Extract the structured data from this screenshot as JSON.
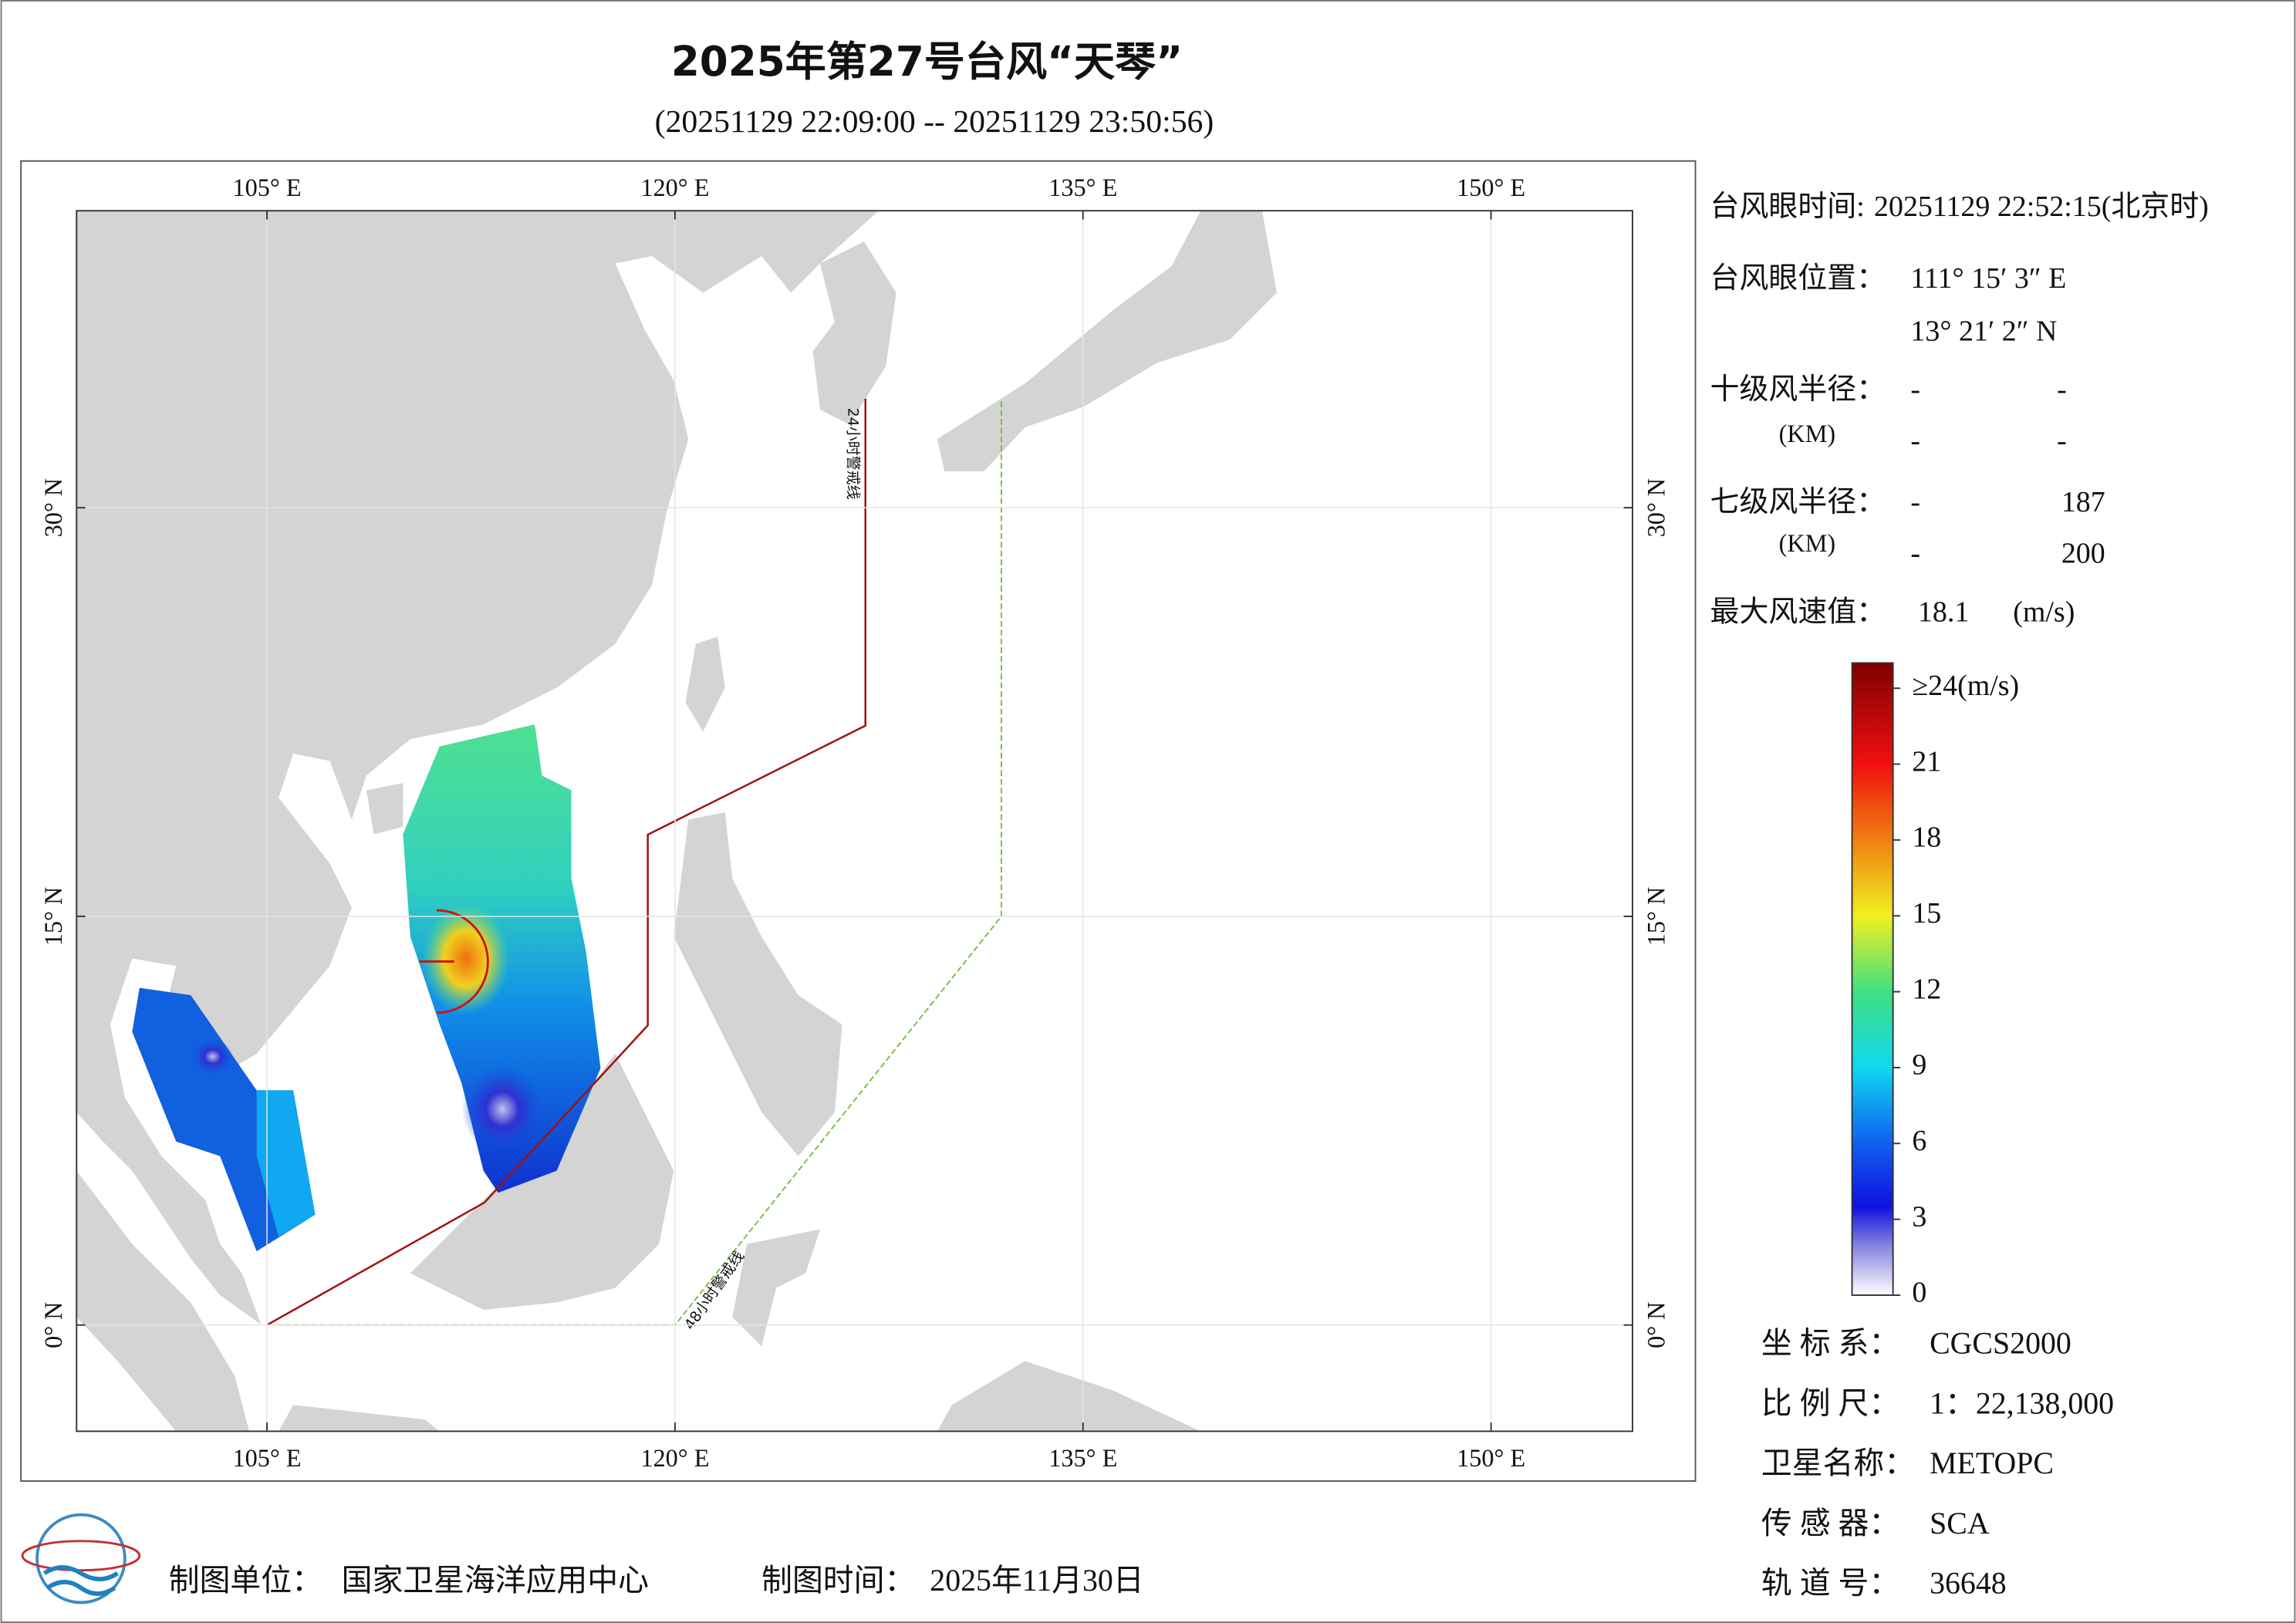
{
  "title": "2025年第27号台风“天琴”",
  "subtitle": "(20251129 22:09:00 -- 20251129 23:50:56)",
  "map": {
    "xlim": [
      98,
      155.2
    ],
    "ylim": [
      -3.9,
      40.9
    ],
    "xticks": [
      {
        "value": 105,
        "label": "105° E"
      },
      {
        "value": 120,
        "label": "120° E"
      },
      {
        "value": 135,
        "label": "135° E"
      },
      {
        "value": 150,
        "label": "150° E"
      }
    ],
    "yticks": [
      {
        "value": 0,
        "label": "0° N"
      },
      {
        "value": 15,
        "label": "15° N"
      },
      {
        "value": 30,
        "label": "30° N"
      }
    ],
    "grid": true,
    "line_24h_label": "24小时警戒线",
    "line_48h_label": "48小时警戒线"
  },
  "info": {
    "eye_time_label": "台风眼时间:",
    "eye_time": "20251129 22:52:15(北京时)",
    "eye_position_label": "台风眼位置：",
    "eye_lon": "111° 15′ 3″ E",
    "eye_lat": "13° 21′ 2″ N",
    "r10_label": "十级风半径：",
    "r10_unit": "(KM)",
    "r10_values": [
      "-",
      "-",
      "-",
      "-"
    ],
    "r7_label": "七级风半径：",
    "r7_unit": "(KM)",
    "r7_values": [
      "-",
      187,
      "-",
      200
    ],
    "max_wind_label": "最大风速值：",
    "max_wind": 18.1,
    "max_wind_unit": "(m/s)"
  },
  "colorbar": {
    "clim": [
      0,
      25
    ],
    "ticks": [
      {
        "value": 24,
        "label": "≥24(m/s)"
      },
      21,
      18,
      15,
      12,
      9,
      6,
      3,
      0
    ]
  },
  "metadata": [
    {
      "label": "坐 标 系：",
      "value": "CGCS2000"
    },
    {
      "label": "比 例 尺：",
      "value": "1：22,138,000"
    },
    {
      "label": "卫星名称：",
      "value": "METOPC"
    },
    {
      "label": "传 感 器：",
      "value": "SCA"
    },
    {
      "label": "轨 道 号：",
      "value": "36648"
    }
  ],
  "footer": {
    "unit_label": "制图单位：",
    "unit": "国家卫星海洋应用中心",
    "date_label": "制图时间：",
    "date": "2025年11月30日"
  }
}
